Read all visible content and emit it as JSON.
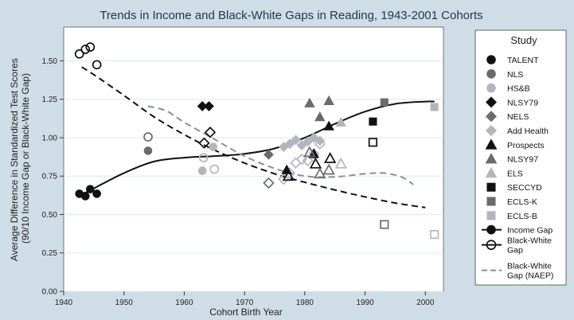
{
  "chart_data": {
    "type": "scatter",
    "title": "Trends in Income and Black-White Gaps in Reading, 1943-2001 Cohorts",
    "xlabel": "Cohort Birth Year",
    "ylabel": [
      "Average Difference in Standardized Test Scores",
      "(90/10 Income Gap or Black-White Gap)"
    ],
    "xlim": [
      1940,
      2003
    ],
    "ylim": [
      0,
      1.72
    ],
    "x_ticks": [
      1940,
      1950,
      1960,
      1970,
      1980,
      1990,
      2000
    ],
    "x_tick_labels": [
      "1940",
      "1950",
      "1960",
      "1970",
      "1980",
      "1990",
      "2000"
    ],
    "y_ticks": [
      0,
      0.25,
      0.5,
      0.75,
      1.0,
      1.25,
      1.5
    ],
    "y_tick_labels": [
      "0.00",
      "0.25",
      "0.50",
      "0.75",
      "1.00",
      "1.25",
      "1.50"
    ],
    "grid": "horizontal",
    "legend_position": "right",
    "legend_title": "Study",
    "studies": [
      {
        "name": "TALENT",
        "marker": "circle",
        "color": "#111111",
        "income": [
          [
            1942.6,
            0.635
          ],
          [
            1943.6,
            0.62
          ],
          [
            1944.4,
            0.665
          ],
          [
            1945.5,
            0.635
          ]
        ],
        "bw": [
          [
            1942.6,
            1.545
          ],
          [
            1943.6,
            1.575
          ],
          [
            1944.4,
            1.59
          ],
          [
            1945.5,
            1.475
          ]
        ]
      },
      {
        "name": "NLS",
        "marker": "circle",
        "color": "#6b6b6b",
        "income": [
          [
            1954.0,
            0.915
          ]
        ],
        "bw": [
          [
            1954.0,
            1.005
          ]
        ]
      },
      {
        "name": "HS&B",
        "marker": "circle",
        "color": "#b5b5c0",
        "income": [
          [
            1963.0,
            0.785
          ],
          [
            1964.8,
            0.94
          ]
        ],
        "bw": [
          [
            1963.2,
            0.87
          ],
          [
            1965.0,
            0.795
          ]
        ]
      },
      {
        "name": "NLSY79",
        "marker": "diamond",
        "color": "#111111",
        "income": [
          [
            1963.0,
            1.205
          ],
          [
            1964.1,
            1.205
          ]
        ],
        "bw": [
          [
            1963.3,
            0.965
          ],
          [
            1964.3,
            1.035
          ]
        ]
      },
      {
        "name": "NELS",
        "marker": "diamond",
        "color": "#6b6b6b",
        "income": [
          [
            1974.0,
            0.89
          ]
        ],
        "bw": [
          [
            1974.0,
            0.705
          ]
        ]
      },
      {
        "name": "Add Health",
        "marker": "diamond",
        "color": "#b5b5c0",
        "income": [
          [
            1976.5,
            0.94
          ],
          [
            1977.5,
            0.96
          ],
          [
            1978.5,
            0.985
          ],
          [
            1979.5,
            0.95
          ],
          [
            1980.5,
            0.975
          ],
          [
            1981.5,
            1.0
          ],
          [
            1982.5,
            0.98
          ]
        ],
        "bw": [
          [
            1976.5,
            0.73
          ],
          [
            1977.5,
            0.77
          ],
          [
            1978.5,
            0.835
          ],
          [
            1979.5,
            0.86
          ],
          [
            1980.5,
            0.85
          ],
          [
            1981.5,
            0.895
          ],
          [
            1982.5,
            0.96
          ]
        ]
      },
      {
        "name": "Prospects",
        "marker": "triangle",
        "color": "#111111",
        "income": [
          [
            1977.0,
            0.79
          ],
          [
            1981.5,
            0.895
          ],
          [
            1984.0,
            1.075
          ]
        ],
        "bw": [
          [
            1977.3,
            0.75
          ],
          [
            1981.8,
            0.83
          ],
          [
            1984.2,
            0.865
          ]
        ]
      },
      {
        "name": "NLSY97",
        "marker": "triangle",
        "color": "#6b6b6b",
        "income": [
          [
            1980.8,
            1.225
          ],
          [
            1982.5,
            1.135
          ],
          [
            1984.0,
            1.24
          ]
        ],
        "bw": [
          [
            1980.8,
            0.905
          ],
          [
            1982.5,
            0.765
          ],
          [
            1984.0,
            0.79
          ]
        ]
      },
      {
        "name": "ELS",
        "marker": "triangle",
        "color": "#b5b5c0",
        "income": [
          [
            1986.0,
            1.1
          ]
        ],
        "bw": [
          [
            1986.0,
            0.83
          ]
        ]
      },
      {
        "name": "SECCYD",
        "marker": "square",
        "color": "#111111",
        "income": [
          [
            1991.3,
            1.105
          ]
        ],
        "bw": [
          [
            1991.3,
            0.97
          ]
        ]
      },
      {
        "name": "ECLS-K",
        "marker": "square",
        "color": "#6b6b6b",
        "income": [
          [
            1993.2,
            1.23
          ]
        ],
        "bw": [
          [
            1993.2,
            0.435
          ]
        ]
      },
      {
        "name": "ECLS-B",
        "marker": "square",
        "color": "#b5b5c0",
        "income": [
          [
            2001.5,
            1.2
          ]
        ],
        "bw": [
          [
            2001.5,
            0.37
          ]
        ]
      }
    ],
    "lines": [
      {
        "name": "Income Gap",
        "style": "solid",
        "color": "#111111",
        "x": [
          1942.6,
          1945,
          1950,
          1955,
          1960,
          1965,
          1970,
          1975,
          1980,
          1985,
          1990,
          1995,
          2000,
          2001.5
        ],
        "y": [
          0.62,
          0.67,
          0.77,
          0.845,
          0.87,
          0.88,
          0.895,
          0.93,
          1.0,
          1.09,
          1.17,
          1.22,
          1.235,
          1.235
        ]
      },
      {
        "name": "Black-White Gap",
        "style": "dashed",
        "color": "#111111",
        "x": [
          1943,
          1945,
          1950,
          1955,
          1960,
          1965,
          1970,
          1975,
          1980,
          1985,
          1990,
          1995,
          2000
        ],
        "y": [
          1.46,
          1.41,
          1.275,
          1.135,
          1.02,
          0.92,
          0.835,
          0.765,
          0.71,
          0.66,
          0.615,
          0.575,
          0.545
        ]
      },
      {
        "name": "Black-White Gap (NAEP)",
        "style": "dashed",
        "color": "#8a8f96",
        "x": [
          1954,
          1957,
          1960,
          1965,
          1970,
          1975,
          1980,
          1985,
          1990,
          1993,
          1996,
          1998
        ],
        "y": [
          1.205,
          1.175,
          1.1,
          0.99,
          0.88,
          0.8,
          0.75,
          0.745,
          0.765,
          0.77,
          0.745,
          0.695
        ]
      }
    ],
    "legend": [
      {
        "label": "TALENT",
        "marker": "circle",
        "color": "#111111"
      },
      {
        "label": "NLS",
        "marker": "circle",
        "color": "#6b6b6b"
      },
      {
        "label": "HS&B",
        "marker": "circle",
        "color": "#b5b5c0"
      },
      {
        "label": "NLSY79",
        "marker": "diamond",
        "color": "#111111"
      },
      {
        "label": "NELS",
        "marker": "diamond",
        "color": "#6b6b6b"
      },
      {
        "label": "Add Health",
        "marker": "diamond",
        "color": "#b5b5c0"
      },
      {
        "label": "Prospects",
        "marker": "triangle",
        "color": "#111111"
      },
      {
        "label": "NLSY97",
        "marker": "triangle",
        "color": "#6b6b6b"
      },
      {
        "label": "ELS",
        "marker": "triangle",
        "color": "#b5b5c0"
      },
      {
        "label": "SECCYD",
        "marker": "square",
        "color": "#111111"
      },
      {
        "label": "ECLS-K",
        "marker": "square",
        "color": "#6b6b6b"
      },
      {
        "label": "ECLS-B",
        "marker": "square",
        "color": "#b5b5c0"
      },
      {
        "label": "Income Gap",
        "line": "solid",
        "marker": "circle",
        "filled": true,
        "color": "#111111"
      },
      {
        "label": [
          "Black-White",
          "Gap"
        ],
        "line": "solid",
        "marker": "circle",
        "filled": false,
        "color": "#111111"
      },
      {
        "label": [
          "Black-White",
          "Gap (NAEP)"
        ],
        "line": "dashed",
        "color": "#8a8f96"
      }
    ],
    "colors": {
      "background": "#cfdde6",
      "plot_background": "#ffffff",
      "grid": "#dfe8ee"
    }
  }
}
